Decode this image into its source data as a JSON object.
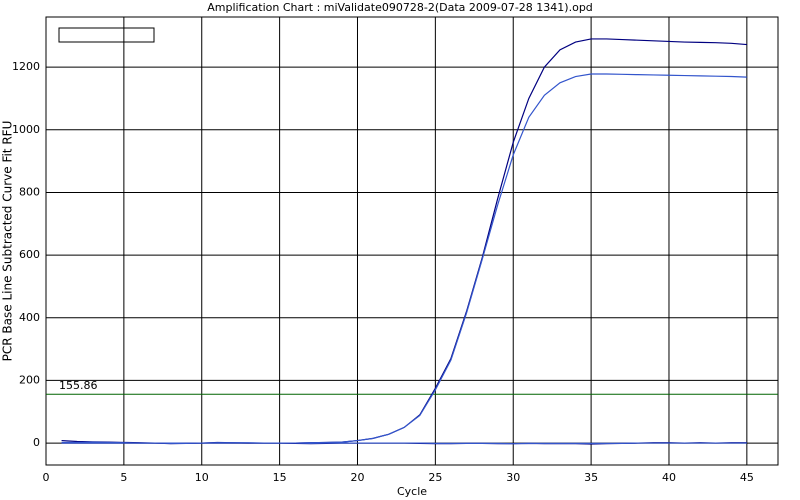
{
  "chart_data": {
    "type": "line",
    "title": "Amplification Chart : miValidate090728-2(Data 2009-07-28 1341).opd",
    "x_label": "Cycle",
    "y_label": "PCR Base Line Subtracted Curve Fit RFU",
    "x": [
      1,
      2,
      3,
      4,
      5,
      6,
      7,
      8,
      9,
      10,
      11,
      12,
      13,
      14,
      15,
      16,
      17,
      18,
      19,
      20,
      21,
      22,
      23,
      24,
      25,
      26,
      27,
      28,
      29,
      30,
      31,
      32,
      33,
      34,
      35,
      36,
      37,
      38,
      39,
      40,
      41,
      42,
      43,
      44,
      45
    ],
    "series": [
      {
        "color": "#000080",
        "values": [
          0,
          0,
          0,
          0,
          0,
          0,
          0,
          0,
          0,
          0,
          0,
          0,
          0,
          0,
          0,
          0,
          1,
          2,
          3,
          8,
          15,
          28,
          50,
          90,
          175,
          270,
          420,
          590,
          780,
          960,
          1100,
          1200,
          1255,
          1280,
          1290,
          1290,
          1288,
          1286,
          1284,
          1282,
          1280,
          1279,
          1278,
          1276,
          1272
        ]
      },
      {
        "color": "#3355cc",
        "values": [
          0,
          0,
          0,
          0,
          0,
          0,
          0,
          0,
          0,
          0,
          0,
          0,
          0,
          0,
          0,
          0,
          1,
          2,
          3,
          8,
          15,
          28,
          50,
          88,
          170,
          265,
          415,
          585,
          760,
          920,
          1040,
          1110,
          1150,
          1170,
          1178,
          1178,
          1177,
          1176,
          1175,
          1174,
          1173,
          1172,
          1171,
          1170,
          1168
        ]
      },
      {
        "color": "#000080",
        "values": [
          8,
          5,
          4,
          3,
          2,
          1,
          0,
          -2,
          -1,
          0,
          2,
          1,
          0,
          0,
          0,
          -1,
          -2,
          -1,
          0,
          0,
          0,
          0,
          0,
          -1,
          -2,
          -2,
          -1,
          -1,
          -2,
          -2,
          -1,
          -2,
          -2,
          -2,
          -3,
          -2,
          -1,
          0,
          1,
          1,
          0,
          1,
          0,
          1,
          1
        ]
      },
      {
        "color": "#3355cc",
        "values": [
          2,
          2,
          3,
          2,
          1,
          0,
          0,
          -1,
          -1,
          0,
          1,
          1,
          1,
          0,
          0,
          0,
          -1,
          0,
          0,
          0,
          0,
          0,
          0,
          0,
          -1,
          -1,
          -1,
          -1,
          -1,
          -2,
          -1,
          -1,
          -1,
          -1,
          -1,
          -1,
          -1,
          0,
          0,
          0,
          0,
          0,
          0,
          0,
          0
        ]
      }
    ],
    "threshold": 155.86,
    "threshold_color": "#006400",
    "xlim": [
      0,
      47
    ],
    "xticks": [
      0,
      5,
      10,
      15,
      20,
      25,
      30,
      35,
      40,
      45
    ],
    "ylim": [
      -70,
      1360
    ],
    "yticks": [
      0,
      200,
      400,
      600,
      800,
      1000,
      1200
    ],
    "grid": true
  }
}
